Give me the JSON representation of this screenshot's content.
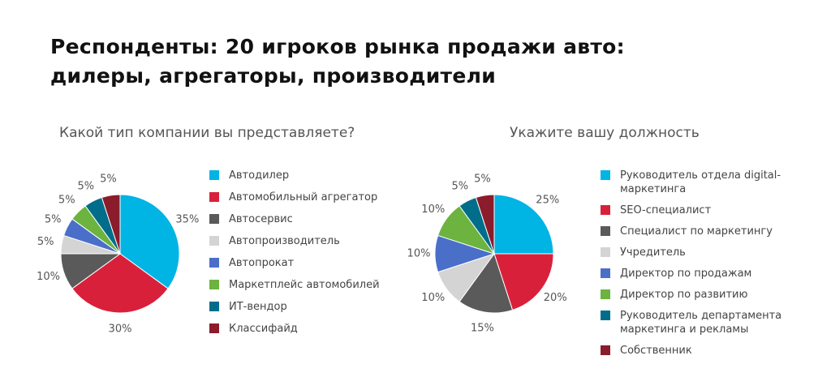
{
  "title": "Респонденты: 20 игроков рынка продажи авто: дилеры, агрегаторы, производители",
  "chart_data": [
    {
      "type": "pie",
      "title": "Какой тип компании вы представляете?",
      "categories": [
        "Автодилер",
        "Автомобильный агрегатор",
        "Автосервис",
        "Автопроизводитель",
        "Автопрокат",
        "Маркетплейс автомобилей",
        "ИТ-вендор",
        "Классифайд"
      ],
      "values": [
        35,
        30,
        10,
        5,
        5,
        5,
        5,
        5
      ],
      "value_labels": [
        "35%",
        "30%",
        "10%",
        "5%",
        "5%",
        "5%",
        "5%",
        "5%"
      ],
      "colors": [
        "#00b4e4",
        "#d9203a",
        "#5a5a5a",
        "#d4d4d4",
        "#4a6fc9",
        "#6cb33f",
        "#006d8a",
        "#8a1c2c"
      ]
    },
    {
      "type": "pie",
      "title": "Укажите вашу должность",
      "categories": [
        "Руководитель отдела digital-маркетинга",
        "SEO-специалист",
        "Специалист по маркетингу",
        "Учредитель",
        "Директор по продажам",
        "Директор по развитию",
        "Руководитель департамента маркетинга и рекламы",
        "Собственник"
      ],
      "values": [
        25,
        20,
        15,
        10,
        10,
        10,
        5,
        5
      ],
      "value_labels": [
        "25%",
        "20%",
        "15%",
        "10%",
        "10%",
        "10%",
        "5%",
        "5%"
      ],
      "colors": [
        "#00b4e4",
        "#d9203a",
        "#5a5a5a",
        "#d4d4d4",
        "#4a6fc9",
        "#6cb33f",
        "#006d8a",
        "#8a1c2c"
      ]
    }
  ]
}
